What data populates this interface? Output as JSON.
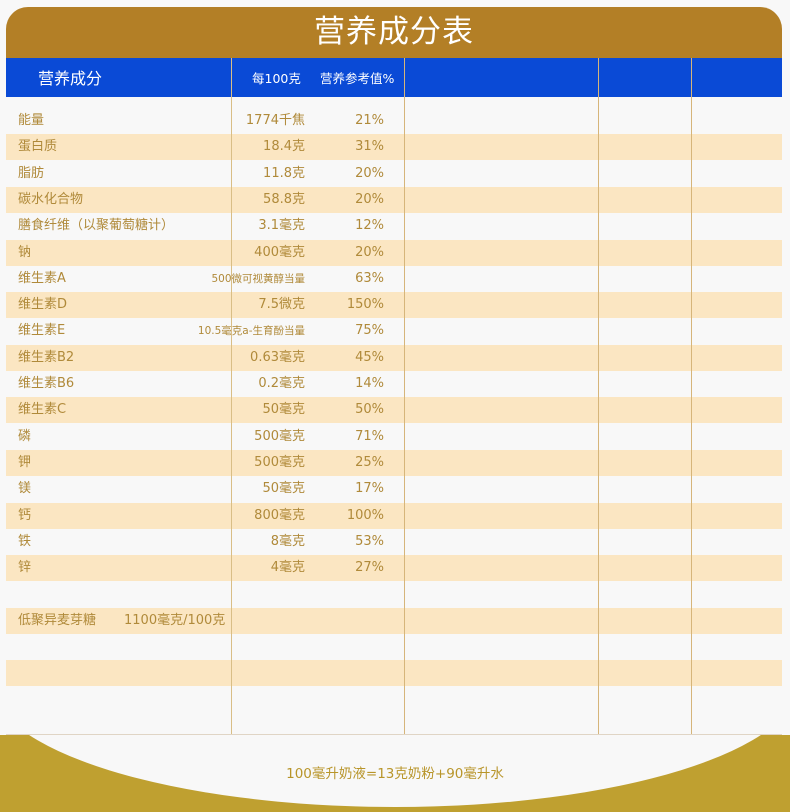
{
  "title": "营养成分表",
  "header": {
    "col_name": "营养成分",
    "col_per100": "每100克",
    "col_ref": "营养参考值%"
  },
  "colors": {
    "title_bg": "#b37f26",
    "header_bg": "#0a4ad6",
    "row_alt_bg": "#fbe6c2",
    "text": "#b08a3a",
    "bottom_band": "#bfa030"
  },
  "rows": [
    {
      "name": "能量",
      "value": "1774千焦",
      "ref": "21%"
    },
    {
      "name": "蛋白质",
      "value": "18.4克",
      "ref": "31%"
    },
    {
      "name": "脂肪",
      "value": "11.8克",
      "ref": "20%"
    },
    {
      "name": "碳水化合物",
      "value": "58.8克",
      "ref": "20%"
    },
    {
      "name": "膳食纤维（以聚葡萄糖计）",
      "value": "3.1毫克",
      "ref": "12%"
    },
    {
      "name": "钠",
      "value": "400毫克",
      "ref": "20%"
    },
    {
      "name": "维生素A",
      "value": "500微可视黄醇当量",
      "ref": "63%"
    },
    {
      "name": "维生素D",
      "value": "7.5微克",
      "ref": "150%"
    },
    {
      "name": "维生素E",
      "value": "10.5毫克a-生育酚当量",
      "ref": "75%"
    },
    {
      "name": "维生素B2",
      "value": "0.63毫克",
      "ref": "45%"
    },
    {
      "name": "维生素B6",
      "value": "0.2毫克",
      "ref": "14%"
    },
    {
      "name": "维生素C",
      "value": "50毫克",
      "ref": "50%"
    },
    {
      "name": "磷",
      "value": "500毫克",
      "ref": "71%"
    },
    {
      "name": "钾",
      "value": "500毫克",
      "ref": "25%"
    },
    {
      "name": "镁",
      "value": "50毫克",
      "ref": "17%"
    },
    {
      "name": "钙",
      "value": "800毫克",
      "ref": "100%"
    },
    {
      "name": "铁",
      "value": "8毫克",
      "ref": "53%"
    },
    {
      "name": "锌",
      "value": "4毫克",
      "ref": "27%"
    }
  ],
  "extra": {
    "name": "低聚异麦芽糖",
    "value": "1100毫克/100克"
  },
  "footnote": "100毫升奶液=13克奶粉+90毫升水"
}
